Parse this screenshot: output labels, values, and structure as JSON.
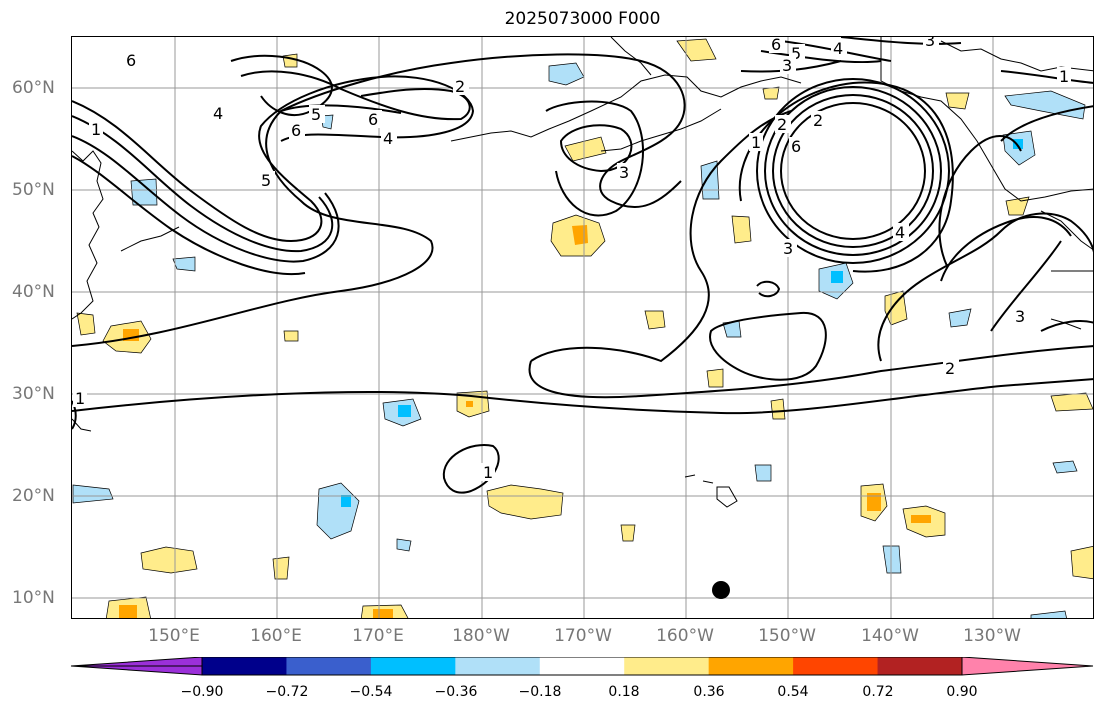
{
  "title": "2025073000 F000",
  "map": {
    "lat_labels": [
      "60°N",
      "50°N",
      "40°N",
      "30°N",
      "20°N",
      "10°N"
    ],
    "lon_labels": [
      "150°E",
      "160°E",
      "170°E",
      "180°W",
      "170°W",
      "160°W",
      "150°W",
      "140°W",
      "130°W"
    ],
    "grid": true,
    "contour_labels": [
      "6",
      "4",
      "1",
      "5",
      "6",
      "2",
      "6",
      "4",
      "5",
      "3",
      "6",
      "5",
      "4",
      "3",
      "2",
      "3",
      "2",
      "6",
      "4",
      "3",
      "1",
      "1",
      "2",
      "3",
      "1",
      "1"
    ]
  },
  "colorbar": {
    "ticks": [
      "−0.90",
      "−0.72",
      "−0.54",
      "−0.36",
      "−0.18",
      "0.18",
      "0.36",
      "0.54",
      "0.72",
      "0.90"
    ],
    "colors": [
      "#9b30d9",
      "#00008b",
      "#3a5fcd",
      "#00bfff",
      "#b0e0f8",
      "#ffffff",
      "#ffec8b",
      "#ffa500",
      "#ff4500",
      "#b22222",
      "#ff82ab"
    ]
  }
}
